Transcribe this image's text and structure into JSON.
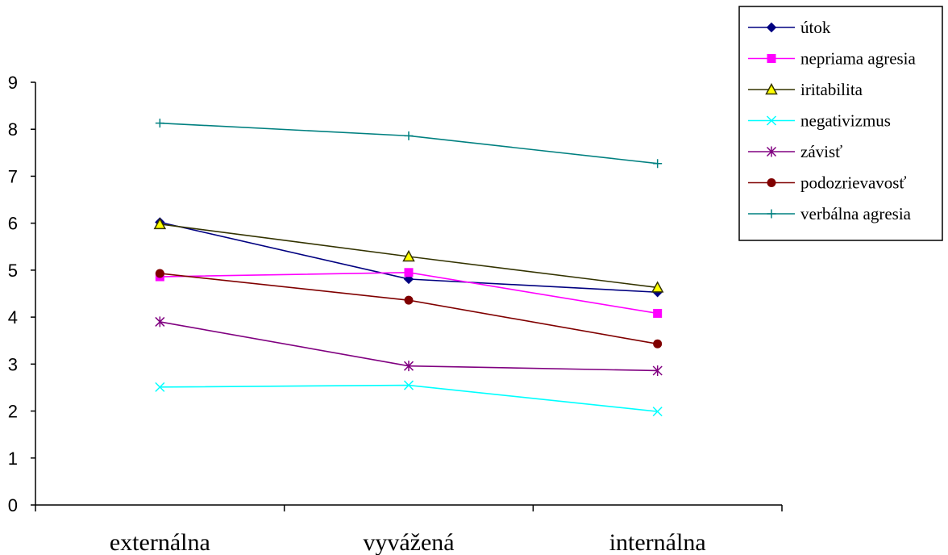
{
  "chart_data": {
    "type": "line",
    "title": "",
    "xlabel": "",
    "ylabel": "",
    "categories": [
      "externálna",
      "vyvážená",
      "internálna"
    ],
    "ylim": [
      0,
      9
    ],
    "yticks": [
      0,
      1,
      2,
      3,
      4,
      5,
      6,
      7,
      8,
      9
    ],
    "grid": false,
    "legend_position": "top-right",
    "series": [
      {
        "name": "útok",
        "values": [
          6.02,
          4.81,
          4.53
        ],
        "color": "#000080",
        "marker": "diamond"
      },
      {
        "name": "nepriama agresia",
        "values": [
          4.86,
          4.95,
          4.08
        ],
        "color": "#ff00ff",
        "marker": "square"
      },
      {
        "name": "iritabilita",
        "values": [
          5.98,
          5.29,
          4.63
        ],
        "color": "#333300",
        "marker": "triangle",
        "marker_fill": "#ffff00"
      },
      {
        "name": "negativizmus",
        "values": [
          2.51,
          2.55,
          1.99
        ],
        "color": "#00ffff",
        "marker": "x"
      },
      {
        "name": "závisť",
        "values": [
          3.9,
          2.96,
          2.86
        ],
        "color": "#800080",
        "marker": "asterisk"
      },
      {
        "name": "podozrievavosť",
        "values": [
          4.93,
          4.36,
          3.43
        ],
        "color": "#800000",
        "marker": "circle"
      },
      {
        "name": "verbálna agresia",
        "values": [
          8.13,
          7.86,
          7.27
        ],
        "color": "#008080",
        "marker": "plus"
      }
    ]
  }
}
